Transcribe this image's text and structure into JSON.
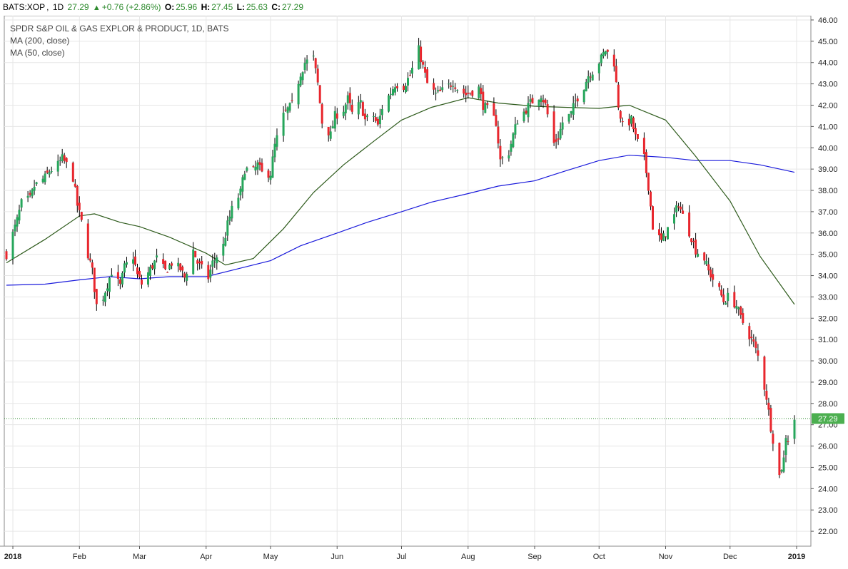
{
  "header": {
    "symbol": "BATS:XOP",
    "interval": "1D",
    "last": "27.29",
    "change": "+0.76 (+2.86%)",
    "open_label": "O:",
    "open": "25.96",
    "high_label": "H:",
    "high": "27.45",
    "low_label": "L:",
    "low": "25.63",
    "close_label": "C:",
    "close": "27.29"
  },
  "legend": {
    "title": "SPDR S&P OIL & GAS EXPLOR & PRODUCT, 1D, BATS",
    "ma200": "MA (200, close)",
    "ma50": "MA (50, close)"
  },
  "colors": {
    "up": "#26a65b",
    "down": "#e8262d",
    "wick": "#000000",
    "ma200": "#1a1adb",
    "ma50": "#2d5a1b",
    "last_label_bg": "#4caf50",
    "grid": "#e6e6e6"
  },
  "chart_data": {
    "type": "candlestick",
    "x_axis": {
      "labels": [
        "2018",
        "Feb",
        "Mar",
        "Apr",
        "May",
        "Jun",
        "Jul",
        "Aug",
        "Sep",
        "Oct",
        "Nov",
        "Dec",
        "2019"
      ],
      "dates": [
        "2018-01-01",
        "2018-02-01",
        "2018-03-01",
        "2018-04-01",
        "2018-05-01",
        "2018-06-01",
        "2018-07-01",
        "2018-08-01",
        "2018-09-01",
        "2018-10-01",
        "2018-11-01",
        "2018-12-01",
        "2019-01-01"
      ]
    },
    "y_axis": {
      "ticks": [
        "22.00",
        "23.00",
        "24.00",
        "25.00",
        "26.00",
        "27.00",
        "28.00",
        "29.00",
        "30.00",
        "31.00",
        "32.00",
        "33.00",
        "34.00",
        "35.00",
        "36.00",
        "37.00",
        "38.00",
        "39.00",
        "40.00",
        "41.00",
        "42.00",
        "43.00",
        "44.00",
        "45.00",
        "46.00"
      ],
      "range": [
        21.3,
        46.2
      ]
    },
    "last_price_label": "27.29",
    "last_price": 27.29,
    "close_path": [
      [
        "2017-12-29",
        35.0
      ],
      [
        "2018-01-03",
        36.6
      ],
      [
        "2018-01-05",
        37.4
      ],
      [
        "2018-01-09",
        37.6
      ],
      [
        "2018-01-11",
        38.2
      ],
      [
        "2018-01-16",
        38.6
      ],
      [
        "2018-01-18",
        38.9
      ],
      [
        "2018-01-22",
        39.2
      ],
      [
        "2018-01-24",
        39.5
      ],
      [
        "2018-01-26",
        39.2
      ],
      [
        "2018-01-29",
        38.6
      ],
      [
        "2018-01-31",
        37.3
      ],
      [
        "2018-02-02",
        36.5
      ],
      [
        "2018-02-05",
        35.0
      ],
      [
        "2018-02-07",
        34.2
      ],
      [
        "2018-02-09",
        32.6
      ],
      [
        "2018-02-12",
        33.0
      ],
      [
        "2018-02-14",
        33.6
      ],
      [
        "2018-02-16",
        34.2
      ],
      [
        "2018-02-20",
        33.5
      ],
      [
        "2018-02-22",
        34.4
      ],
      [
        "2018-02-26",
        34.9
      ],
      [
        "2018-02-28",
        34.0
      ],
      [
        "2018-03-02",
        33.6
      ],
      [
        "2018-03-06",
        34.3
      ],
      [
        "2018-03-09",
        34.8
      ],
      [
        "2018-03-13",
        34.2
      ],
      [
        "2018-03-16",
        34.6
      ],
      [
        "2018-03-20",
        34.3
      ],
      [
        "2018-03-22",
        33.9
      ],
      [
        "2018-03-26",
        35.2
      ],
      [
        "2018-03-28",
        34.6
      ],
      [
        "2018-04-02",
        33.9
      ],
      [
        "2018-04-04",
        34.6
      ],
      [
        "2018-04-09",
        35.4
      ],
      [
        "2018-04-11",
        36.4
      ],
      [
        "2018-04-13",
        37.1
      ],
      [
        "2018-04-17",
        37.9
      ],
      [
        "2018-04-19",
        39.0
      ],
      [
        "2018-04-23",
        38.9
      ],
      [
        "2018-04-25",
        39.2
      ],
      [
        "2018-04-27",
        38.8
      ],
      [
        "2018-05-01",
        38.8
      ],
      [
        "2018-05-03",
        40.1
      ],
      [
        "2018-05-07",
        41.5
      ],
      [
        "2018-05-09",
        41.8
      ],
      [
        "2018-05-11",
        42.0
      ],
      [
        "2018-05-15",
        43.5
      ],
      [
        "2018-05-17",
        44.0
      ],
      [
        "2018-05-21",
        44.2
      ],
      [
        "2018-05-23",
        43.0
      ],
      [
        "2018-05-25",
        41.2
      ],
      [
        "2018-05-29",
        40.6
      ],
      [
        "2018-05-31",
        41.5
      ],
      [
        "2018-06-04",
        41.8
      ],
      [
        "2018-06-06",
        42.3
      ],
      [
        "2018-06-08",
        41.6
      ],
      [
        "2018-06-12",
        42.1
      ],
      [
        "2018-06-14",
        41.3
      ],
      [
        "2018-06-18",
        41.5
      ],
      [
        "2018-06-20",
        41.0
      ],
      [
        "2018-06-22",
        41.9
      ],
      [
        "2018-06-26",
        42.6
      ],
      [
        "2018-06-28",
        43.0
      ],
      [
        "2018-07-02",
        42.9
      ],
      [
        "2018-07-05",
        43.4
      ],
      [
        "2018-07-09",
        44.6
      ],
      [
        "2018-07-11",
        43.8
      ],
      [
        "2018-07-13",
        43.0
      ],
      [
        "2018-07-17",
        42.5
      ],
      [
        "2018-07-19",
        42.6
      ],
      [
        "2018-07-23",
        42.9
      ],
      [
        "2018-07-25",
        43.1
      ],
      [
        "2018-07-27",
        42.8
      ],
      [
        "2018-07-31",
        42.5
      ],
      [
        "2018-08-02",
        42.6
      ],
      [
        "2018-08-06",
        42.8
      ],
      [
        "2018-08-08",
        42.0
      ],
      [
        "2018-08-10",
        41.8
      ],
      [
        "2018-08-14",
        41.2
      ],
      [
        "2018-08-16",
        39.4
      ],
      [
        "2018-08-20",
        39.8
      ],
      [
        "2018-08-22",
        40.6
      ],
      [
        "2018-08-24",
        41.3
      ],
      [
        "2018-08-28",
        41.8
      ],
      [
        "2018-08-30",
        42.1
      ],
      [
        "2018-09-04",
        42.5
      ],
      [
        "2018-09-06",
        42.0
      ],
      [
        "2018-09-10",
        40.2
      ],
      [
        "2018-09-12",
        40.5
      ],
      [
        "2018-09-14",
        41.2
      ],
      [
        "2018-09-18",
        41.6
      ],
      [
        "2018-09-20",
        42.2
      ],
      [
        "2018-09-24",
        42.9
      ],
      [
        "2018-09-26",
        43.4
      ],
      [
        "2018-09-28",
        43.6
      ],
      [
        "2018-10-02",
        44.2
      ],
      [
        "2018-10-04",
        44.6
      ],
      [
        "2018-10-08",
        44.0
      ],
      [
        "2018-10-10",
        42.0
      ],
      [
        "2018-10-12",
        41.0
      ],
      [
        "2018-10-16",
        41.3
      ],
      [
        "2018-10-18",
        40.5
      ],
      [
        "2018-10-22",
        39.5
      ],
      [
        "2018-10-24",
        38.2
      ],
      [
        "2018-10-26",
        36.3
      ],
      [
        "2018-10-30",
        35.6
      ],
      [
        "2018-11-01",
        36.0
      ],
      [
        "2018-11-05",
        36.8
      ],
      [
        "2018-11-07",
        37.4
      ],
      [
        "2018-11-09",
        36.8
      ],
      [
        "2018-11-13",
        35.8
      ],
      [
        "2018-11-15",
        35.2
      ],
      [
        "2018-11-19",
        34.8
      ],
      [
        "2018-11-21",
        34.2
      ],
      [
        "2018-11-26",
        33.3
      ],
      [
        "2018-11-28",
        32.8
      ],
      [
        "2018-11-30",
        33.0
      ],
      [
        "2018-12-04",
        32.6
      ],
      [
        "2018-12-06",
        32.0
      ],
      [
        "2018-12-10",
        31.2
      ],
      [
        "2018-12-12",
        30.8
      ],
      [
        "2018-12-14",
        30.2
      ],
      [
        "2018-12-18",
        28.3
      ],
      [
        "2018-12-20",
        26.9
      ],
      [
        "2018-12-24",
        24.6
      ],
      [
        "2018-12-26",
        25.4
      ],
      [
        "2018-12-27",
        26.5
      ],
      [
        "2018-12-28",
        26.3
      ],
      [
        "2018-12-31",
        27.29
      ]
    ],
    "ma200": [
      [
        "2017-12-29",
        33.55
      ],
      [
        "2018-01-16",
        33.6
      ],
      [
        "2018-02-01",
        33.8
      ],
      [
        "2018-02-15",
        33.95
      ],
      [
        "2018-03-01",
        33.85
      ],
      [
        "2018-03-15",
        33.95
      ],
      [
        "2018-04-01",
        33.95
      ],
      [
        "2018-04-15",
        34.3
      ],
      [
        "2018-05-01",
        34.7
      ],
      [
        "2018-05-15",
        35.4
      ],
      [
        "2018-06-01",
        36.0
      ],
      [
        "2018-06-15",
        36.5
      ],
      [
        "2018-07-01",
        37.0
      ],
      [
        "2018-07-15",
        37.45
      ],
      [
        "2018-08-01",
        37.85
      ],
      [
        "2018-08-15",
        38.2
      ],
      [
        "2018-09-01",
        38.45
      ],
      [
        "2018-09-15",
        38.9
      ],
      [
        "2018-10-01",
        39.4
      ],
      [
        "2018-10-15",
        39.65
      ],
      [
        "2018-11-01",
        39.55
      ],
      [
        "2018-11-15",
        39.4
      ],
      [
        "2018-12-01",
        39.4
      ],
      [
        "2018-12-15",
        39.2
      ],
      [
        "2018-12-31",
        38.85
      ]
    ],
    "ma50": [
      [
        "2017-12-29",
        34.6
      ],
      [
        "2018-01-16",
        35.7
      ],
      [
        "2018-02-01",
        36.8
      ],
      [
        "2018-02-08",
        36.9
      ],
      [
        "2018-02-20",
        36.5
      ],
      [
        "2018-03-01",
        36.3
      ],
      [
        "2018-03-15",
        35.8
      ],
      [
        "2018-04-01",
        35.05
      ],
      [
        "2018-04-10",
        34.5
      ],
      [
        "2018-04-23",
        34.8
      ],
      [
        "2018-05-07",
        36.2
      ],
      [
        "2018-05-21",
        37.9
      ],
      [
        "2018-06-04",
        39.2
      ],
      [
        "2018-06-18",
        40.3
      ],
      [
        "2018-07-01",
        41.3
      ],
      [
        "2018-07-15",
        41.9
      ],
      [
        "2018-08-01",
        42.35
      ],
      [
        "2018-08-15",
        42.1
      ],
      [
        "2018-09-01",
        41.95
      ],
      [
        "2018-09-15",
        41.9
      ],
      [
        "2018-10-01",
        41.85
      ],
      [
        "2018-10-15",
        42.0
      ],
      [
        "2018-11-01",
        41.3
      ],
      [
        "2018-11-15",
        39.6
      ],
      [
        "2018-12-01",
        37.5
      ],
      [
        "2018-12-15",
        34.9
      ],
      [
        "2018-12-31",
        32.65
      ]
    ]
  }
}
